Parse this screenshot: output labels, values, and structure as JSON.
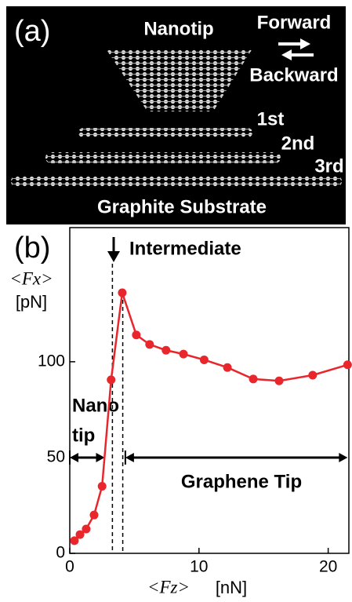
{
  "panel_a": {
    "label": "(a)",
    "nanotip": "Nanotip",
    "forward": "Forward",
    "backward": "Backward",
    "layers": [
      "1st",
      "2nd",
      "3rd"
    ],
    "substrate": "Graphite Substrate"
  },
  "chart_data": {
    "type": "line",
    "panel_label": "(b)",
    "annotation": "Intermediate",
    "region_labels": [
      "Nano",
      "tip",
      "Graphene Tip"
    ],
    "y_label": "<Fx>",
    "y_unit": "[pN]",
    "x_label": "<Fz>",
    "x_unit": "[nN]",
    "x": [
      0.36,
      0.79,
      1.27,
      1.88,
      2.5,
      3.2,
      4.06,
      5.15,
      6.18,
      7.45,
      8.8,
      10.4,
      12.2,
      14.2,
      16.2,
      18.8,
      21.5
    ],
    "series": [
      {
        "color": "#e8262c",
        "values": [
          6.6,
          9.8,
          12.7,
          20,
          35,
          90.6,
          136,
          114,
          109,
          106,
          104,
          101,
          97,
          91,
          90,
          93,
          98.4
        ]
      }
    ],
    "dashed_x": [
      3.3,
      4.1
    ],
    "ranges": [
      [
        0,
        2.7
      ],
      [
        4.3,
        21.5
      ]
    ],
    "xlim": [
      0,
      21.6
    ],
    "ylim": [
      0,
      170
    ],
    "xticks": [
      0,
      10,
      20
    ],
    "yticks": [
      0,
      50,
      100
    ]
  }
}
